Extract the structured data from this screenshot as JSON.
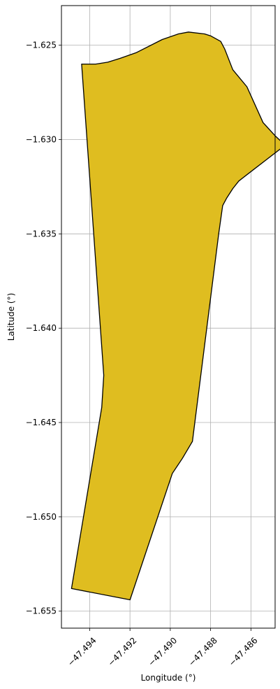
{
  "chart_data": {
    "type": "area",
    "title": "",
    "xlabel": "Longitude (°)",
    "ylabel": "Latitude (°)",
    "xlim": [
      -47.4954,
      -47.4848
    ],
    "ylim": [
      -1.6559,
      -1.6229
    ],
    "xticks": [
      -47.494,
      -47.492,
      -47.49,
      -47.488,
      -47.486
    ],
    "xtick_labels": [
      "−47.494",
      "−47.492",
      "−47.490",
      "−47.488",
      "−47.486"
    ],
    "yticks": [
      -1.625,
      -1.63,
      -1.635,
      -1.64,
      -1.645,
      -1.65,
      -1.655
    ],
    "ytick_labels": [
      "−1.625",
      "−1.630",
      "−1.635",
      "−1.640",
      "−1.645",
      "−1.650",
      "−1.655"
    ],
    "grid": true,
    "fill_color": "#DFBD20",
    "edge_color": "#000000",
    "polygon": [
      [
        -47.4944,
        -1.626
      ],
      [
        -47.4937,
        -1.626
      ],
      [
        -47.4931,
        -1.6259
      ],
      [
        -47.4925,
        -1.6257
      ],
      [
        -47.4917,
        -1.6254
      ],
      [
        -47.4904,
        -1.6247
      ],
      [
        -47.4896,
        -1.6244
      ],
      [
        -47.4891,
        -1.6243
      ],
      [
        -47.4883,
        -1.6244
      ],
      [
        -47.488,
        -1.6245
      ],
      [
        -47.4875,
        -1.6248
      ],
      [
        -47.4873,
        -1.6252
      ],
      [
        -47.4869,
        -1.6263
      ],
      [
        -47.4862,
        -1.6272
      ],
      [
        -47.4854,
        -1.6291
      ],
      [
        -47.4848,
        -1.6298
      ],
      [
        -47.4843,
        -1.6303
      ],
      [
        -47.486,
        -1.6317
      ],
      [
        -47.4866,
        -1.6322
      ],
      [
        -47.4869,
        -1.6326
      ],
      [
        -47.4872,
        -1.6331
      ],
      [
        -47.4874,
        -1.6335
      ],
      [
        -47.4876,
        -1.635
      ],
      [
        -47.4889,
        -1.646
      ],
      [
        -47.4894,
        -1.6469
      ],
      [
        -47.4899,
        -1.6477
      ],
      [
        -47.492,
        -1.6544
      ],
      [
        -47.4949,
        -1.6538
      ],
      [
        -47.4934,
        -1.6442
      ],
      [
        -47.4933,
        -1.6425
      ],
      [
        -47.4944,
        -1.626
      ]
    ]
  }
}
